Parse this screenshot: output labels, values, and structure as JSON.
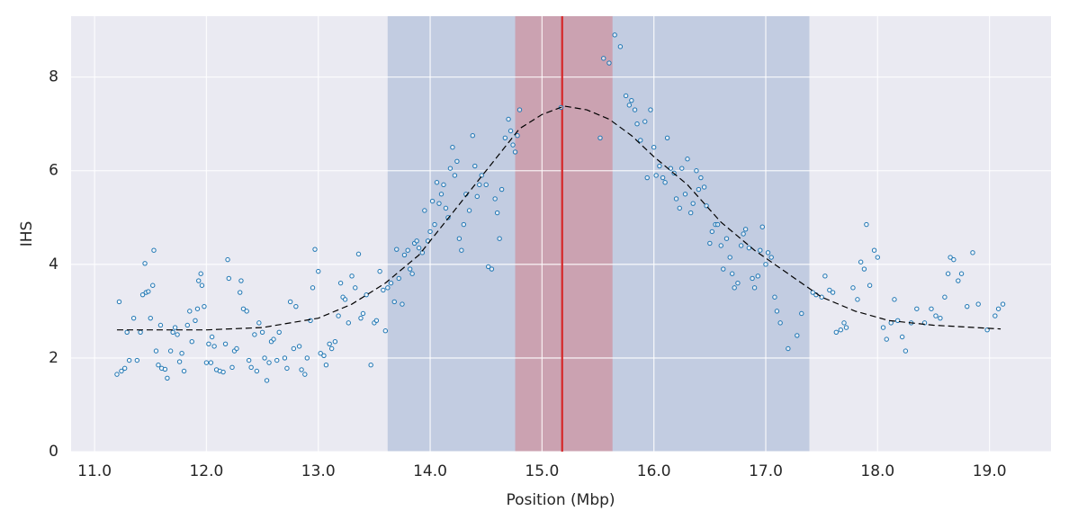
{
  "chart_data": {
    "type": "scatter",
    "xlabel": "Position (Mbp)",
    "ylabel": "IHS",
    "xlim": [
      10.79,
      19.55
    ],
    "ylim": [
      0,
      9.3
    ],
    "xticks": [
      {
        "value": 11,
        "label": "11.0"
      },
      {
        "value": 12,
        "label": "12.0"
      },
      {
        "value": 13,
        "label": "13.0"
      },
      {
        "value": 14,
        "label": "14.0"
      },
      {
        "value": 15,
        "label": "15.0"
      },
      {
        "value": 16,
        "label": "16.0"
      },
      {
        "value": 17,
        "label": "17.0"
      },
      {
        "value": 18,
        "label": "18.0"
      },
      {
        "value": 19,
        "label": "19.0"
      }
    ],
    "yticks": [
      0,
      2,
      4,
      6,
      8
    ],
    "grid": true,
    "color": "#1f77b4",
    "x": [
      11.2,
      11.22,
      11.24,
      11.27,
      11.29,
      11.31,
      11.35,
      11.38,
      11.41,
      11.43,
      11.45,
      11.46,
      11.48,
      11.5,
      11.52,
      11.53,
      11.55,
      11.57,
      11.59,
      11.6,
      11.63,
      11.65,
      11.68,
      11.7,
      11.72,
      11.74,
      11.76,
      11.78,
      11.8,
      11.83,
      11.85,
      11.87,
      11.9,
      11.92,
      11.93,
      11.95,
      11.96,
      11.98,
      12.0,
      12.02,
      12.04,
      12.05,
      12.07,
      12.09,
      12.12,
      12.15,
      12.17,
      12.19,
      12.2,
      12.23,
      12.25,
      12.27,
      12.3,
      12.31,
      12.33,
      12.36,
      12.38,
      12.4,
      12.43,
      12.45,
      12.47,
      12.5,
      12.52,
      12.54,
      12.56,
      12.58,
      12.6,
      12.63,
      12.65,
      12.7,
      12.72,
      12.75,
      12.78,
      12.8,
      12.83,
      12.85,
      12.88,
      12.9,
      12.93,
      12.95,
      12.97,
      13.0,
      13.02,
      13.05,
      13.07,
      13.1,
      13.12,
      13.15,
      13.18,
      13.2,
      13.22,
      13.24,
      13.27,
      13.3,
      13.33,
      13.36,
      13.38,
      13.4,
      13.43,
      13.47,
      13.5,
      13.52,
      13.55,
      13.58,
      13.6,
      13.62,
      13.65,
      13.68,
      13.7,
      13.72,
      13.75,
      13.77,
      13.8,
      13.82,
      13.84,
      13.86,
      13.88,
      13.9,
      13.93,
      13.95,
      13.98,
      14.0,
      14.02,
      14.04,
      14.06,
      14.08,
      14.1,
      14.12,
      14.14,
      14.16,
      14.18,
      14.2,
      14.22,
      14.24,
      14.26,
      14.28,
      14.3,
      14.32,
      14.35,
      14.38,
      14.4,
      14.42,
      14.44,
      14.46,
      14.5,
      14.52,
      14.55,
      14.58,
      14.6,
      14.62,
      14.64,
      14.67,
      14.7,
      14.72,
      14.74,
      14.76,
      14.78,
      14.8,
      15.17,
      15.52,
      15.55,
      15.6,
      15.65,
      15.7,
      15.75,
      15.78,
      15.8,
      15.83,
      15.85,
      15.88,
      15.92,
      15.94,
      15.97,
      16.0,
      16.02,
      16.05,
      16.08,
      16.1,
      16.12,
      16.15,
      16.18,
      16.2,
      16.23,
      16.25,
      16.28,
      16.3,
      16.33,
      16.35,
      16.38,
      16.4,
      16.42,
      16.45,
      16.47,
      16.5,
      16.52,
      16.55,
      16.57,
      16.6,
      16.62,
      16.65,
      16.68,
      16.7,
      16.72,
      16.75,
      16.78,
      16.8,
      16.82,
      16.85,
      16.88,
      16.9,
      16.93,
      16.95,
      16.97,
      17.0,
      17.02,
      17.05,
      17.08,
      17.1,
      17.13,
      17.2,
      17.28,
      17.32,
      17.42,
      17.45,
      17.5,
      17.53,
      17.57,
      17.6,
      17.63,
      17.67,
      17.7,
      17.72,
      17.78,
      17.82,
      17.85,
      17.88,
      17.9,
      17.93,
      17.97,
      18.0,
      18.05,
      18.08,
      18.12,
      18.15,
      18.18,
      18.22,
      18.25,
      18.3,
      18.35,
      18.42,
      18.48,
      18.52,
      18.56,
      18.6,
      18.63,
      18.65,
      18.68,
      18.72,
      18.75,
      18.8,
      18.85,
      18.9,
      18.98,
      19.05,
      19.08,
      19.12
    ],
    "values": [
      1.65,
      3.2,
      1.72,
      1.78,
      2.55,
      1.95,
      2.85,
      1.95,
      2.55,
      3.35,
      4.02,
      3.4,
      3.42,
      2.85,
      3.55,
      4.3,
      2.15,
      1.85,
      2.7,
      1.78,
      1.76,
      1.57,
      2.15,
      2.55,
      2.65,
      2.5,
      1.92,
      2.1,
      1.72,
      2.7,
      3.0,
      2.35,
      2.8,
      3.05,
      3.65,
      3.8,
      3.55,
      3.1,
      1.9,
      2.3,
      1.9,
      2.45,
      2.25,
      1.75,
      1.72,
      1.7,
      2.3,
      4.1,
      3.7,
      1.8,
      2.15,
      2.2,
      3.4,
      3.65,
      3.05,
      3.0,
      1.95,
      1.8,
      2.5,
      1.72,
      2.75,
      2.55,
      2.0,
      1.52,
      1.9,
      2.35,
      2.4,
      1.95,
      2.55,
      2.0,
      1.78,
      3.2,
      2.2,
      3.1,
      2.25,
      1.75,
      1.65,
      2.0,
      2.8,
      3.5,
      4.32,
      3.85,
      2.1,
      2.05,
      1.85,
      2.3,
      2.2,
      2.35,
      2.9,
      3.6,
      3.3,
      3.25,
      2.75,
      3.75,
      3.5,
      4.22,
      2.85,
      2.95,
      3.35,
      1.85,
      2.75,
      2.8,
      3.85,
      3.45,
      2.58,
      3.5,
      3.6,
      3.2,
      4.32,
      3.7,
      3.15,
      4.2,
      4.3,
      3.9,
      3.8,
      4.45,
      4.5,
      4.35,
      4.25,
      5.15,
      4.5,
      4.7,
      5.35,
      4.85,
      5.75,
      5.3,
      5.5,
      5.7,
      5.2,
      5.0,
      6.05,
      6.5,
      5.9,
      6.2,
      4.55,
      4.3,
      4.85,
      5.5,
      5.15,
      6.75,
      6.1,
      5.45,
      5.7,
      5.9,
      5.7,
      3.95,
      3.9,
      5.4,
      5.1,
      4.55,
      5.6,
      6.7,
      7.1,
      6.85,
      6.55,
      6.4,
      6.75,
      7.3,
      7.35,
      6.7,
      8.4,
      8.3,
      8.9,
      8.65,
      7.6,
      7.4,
      7.5,
      7.3,
      7.0,
      6.65,
      7.05,
      5.85,
      7.3,
      6.5,
      5.9,
      6.1,
      5.85,
      5.75,
      6.7,
      6.05,
      5.95,
      5.4,
      5.2,
      6.05,
      5.5,
      6.25,
      5.1,
      5.3,
      6.0,
      5.6,
      5.85,
      5.65,
      5.25,
      4.45,
      4.7,
      4.85,
      4.85,
      4.4,
      3.9,
      4.55,
      4.15,
      3.8,
      3.5,
      3.6,
      4.4,
      4.65,
      4.75,
      4.35,
      3.7,
      3.5,
      3.75,
      4.3,
      4.8,
      4.0,
      4.25,
      4.15,
      3.3,
      3.0,
      2.75,
      2.2,
      2.48,
      2.95,
      3.4,
      3.35,
      3.3,
      3.75,
      3.45,
      3.4,
      2.55,
      2.6,
      2.75,
      2.65,
      3.5,
      3.25,
      4.05,
      3.9,
      4.85,
      3.55,
      4.3,
      4.15,
      2.65,
      2.4,
      2.75,
      3.25,
      2.8,
      2.45,
      2.15,
      2.75,
      3.05,
      2.75,
      3.05,
      2.9,
      2.85,
      3.3,
      3.8,
      4.15,
      4.1,
      3.65,
      3.8,
      3.1,
      4.25,
      3.15,
      2.6,
      2.9,
      3.05,
      3.15
    ],
    "fit": {
      "color": "#000000",
      "x": [
        11.2,
        11.5,
        12.0,
        12.5,
        13.0,
        13.3,
        13.6,
        13.9,
        14.2,
        14.5,
        14.8,
        15.0,
        15.2,
        15.4,
        15.6,
        15.8,
        16.0,
        16.3,
        16.6,
        16.9,
        17.2,
        17.5,
        17.8,
        18.1,
        18.5,
        19.1
      ],
      "values": [
        2.6,
        2.6,
        2.6,
        2.65,
        2.85,
        3.15,
        3.6,
        4.2,
        5.1,
        6.0,
        6.9,
        7.2,
        7.38,
        7.3,
        7.1,
        6.75,
        6.3,
        5.7,
        4.9,
        4.3,
        3.8,
        3.3,
        3.0,
        2.8,
        2.7,
        2.62
      ]
    },
    "spans": [
      {
        "xlim": [
          13.62,
          17.39
        ],
        "color": "rgba(76,114,176,0.25)"
      },
      {
        "xlim": [
          14.76,
          15.63
        ],
        "color": "rgba(221,82,90,0.35)"
      }
    ],
    "vline": {
      "x": 15.18,
      "color": "#d62728"
    }
  }
}
